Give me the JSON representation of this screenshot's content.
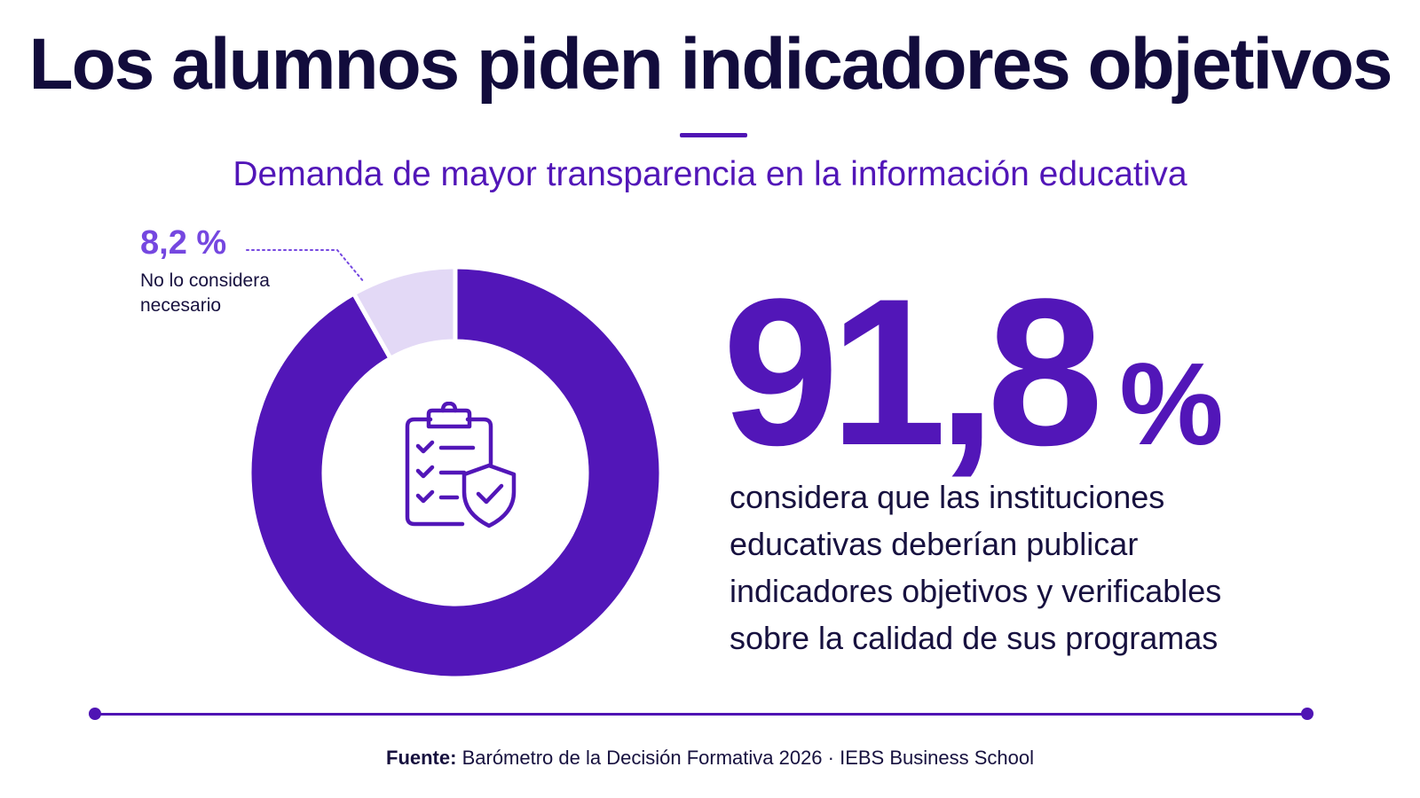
{
  "title": "Los alumnos piden indicadores objetivos",
  "subtitle": "Demanda de mayor transparencia en la información educativa",
  "chart_data": {
    "type": "pie",
    "title": "Los alumnos piden indicadores objetivos",
    "subtitle": "Demanda de mayor transparencia en la información educativa",
    "series": [
      {
        "values": [
          91.8,
          8.2
        ],
        "labels": [
          "considera que las instituciones educativas deberían publicar indicadores objetivos y verificables sobre la calidad de sus programas",
          "No lo considera necesario"
        ],
        "display": [
          "91,8 %",
          "8,2 %"
        ]
      }
    ],
    "colors": [
      "#5216b8",
      "#e3d9f6"
    ],
    "center_icon": "clipboard-shield-icon"
  },
  "highlight": {
    "number": "91,8",
    "percent_sign": "%",
    "description": "considera que las instituciones educativas deberían publicar indicadores objetivos y verificables sobre la calidad de sus programas"
  },
  "minor": {
    "value": "8,2 %",
    "label": "No lo considera necesario"
  },
  "source": {
    "label": "Fuente:",
    "text": "Barómetro de la Decisión Formativa 2026 · IEBS Business School"
  },
  "colors": {
    "primary": "#5216b8",
    "light": "#e3d9f6",
    "accent": "#7547e0",
    "dark": "#120c3c"
  }
}
